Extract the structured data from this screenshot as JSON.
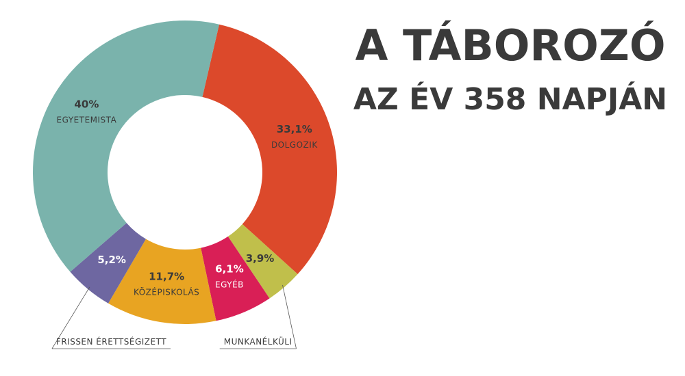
{
  "chart_data": {
    "type": "pie",
    "title": "A TÁBOROZÓ",
    "subtitle": "AZ ÉV 358 NAPJÁN",
    "categories": [
      "DOLGOZIK",
      "MUNKANÉLKÜLI",
      "EGYÉB",
      "KÖZÉPISKOLÁS",
      "FRISSEN ÉRETTSÉGIZETT",
      "EGYETEMISTA"
    ],
    "values": [
      33.1,
      3.9,
      6.1,
      11.7,
      5.2,
      40
    ],
    "value_labels": [
      "33,1%",
      "3,9%",
      "6,1%",
      "11,7%",
      "5,2%",
      "40%"
    ],
    "colors": [
      "#dc492b",
      "#c0bf4b",
      "#d91f56",
      "#e8a422",
      "#6e67a1",
      "#7ab3ac"
    ],
    "label_colors": [
      "#3a3a3a",
      "#3a3a3a",
      "#ffffff",
      "#3a3a3a",
      "#ffffff",
      "#3a3a3a"
    ]
  }
}
